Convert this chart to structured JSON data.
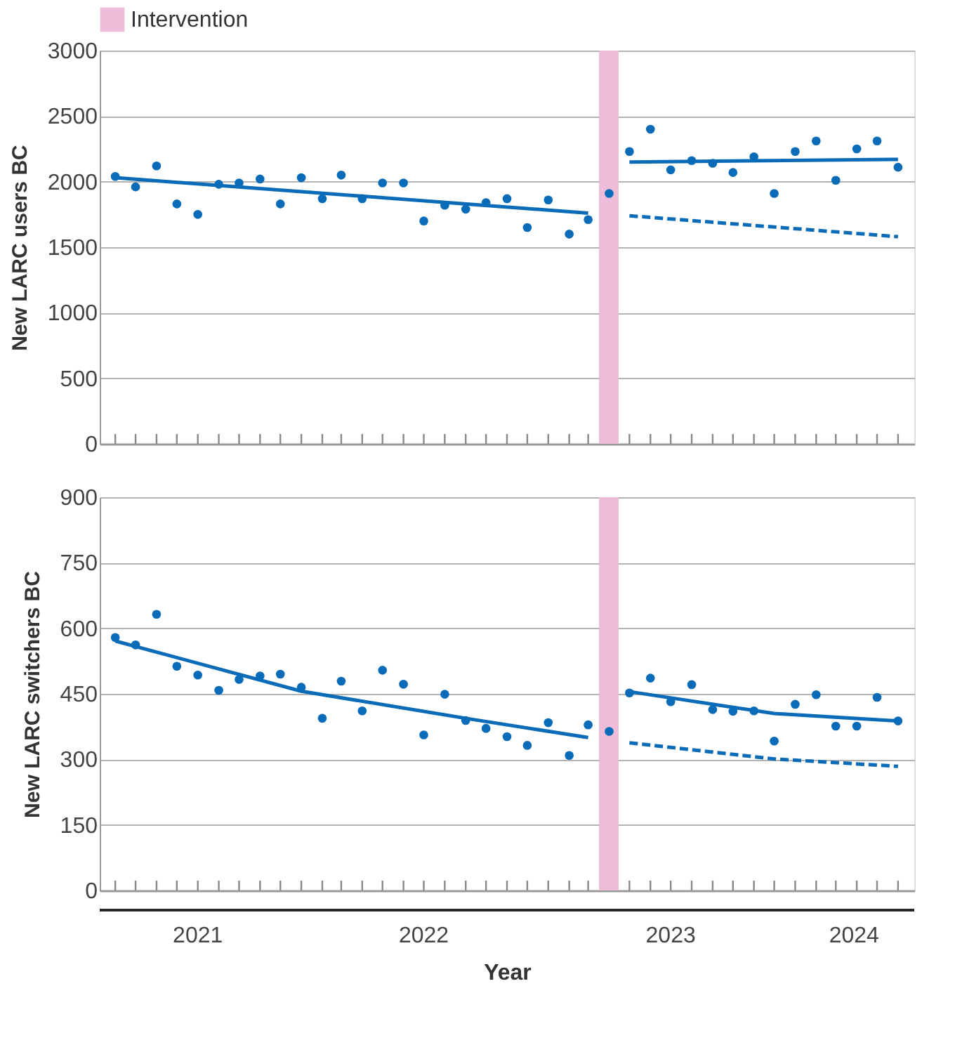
{
  "chart_data": [
    {
      "type": "scatter",
      "ylabel": "New LARC users BC",
      "legend": "top left",
      "grid": "y",
      "tick_labels": "y",
      "x": [
        "2021-04",
        "2021-05",
        "2021-06",
        "2021-07",
        "2021-08",
        "2021-09",
        "2021-10",
        "2021-11",
        "2021-12",
        "2022-01",
        "2022-02",
        "2022-03",
        "2022-04",
        "2022-05",
        "2022-06",
        "2022-07",
        "2022-08",
        "2022-09",
        "2022-10",
        "2022-11",
        "2022-12",
        "2023-01",
        "2023-02",
        "2023-03",
        "2023-04",
        "2023-05",
        "2023-06",
        "2023-07",
        "2023-08",
        "2023-09",
        "2023-10",
        "2023-11",
        "2023-12",
        "2024-01",
        "2024-02",
        "2024-03",
        "2024-04",
        "2024-05",
        "2024-06"
      ],
      "xlim": [
        "2021-03-09",
        "2024-06-25"
      ],
      "xticks": [
        {
          "value": "2021-04",
          "label": null
        },
        {
          "value": "2021-05",
          "label": null
        },
        {
          "value": "2021-06",
          "label": null
        },
        {
          "value": "2021-07",
          "label": null
        },
        {
          "value": "2021-08",
          "label": null
        },
        {
          "value": "2021-09",
          "label": null
        },
        {
          "value": "2021-10",
          "label": null
        },
        {
          "value": "2021-11",
          "label": null
        },
        {
          "value": "2021-12",
          "label": null
        },
        {
          "value": "2022-01",
          "label": null
        },
        {
          "value": "2022-02",
          "label": null
        },
        {
          "value": "2022-03",
          "label": null
        },
        {
          "value": "2022-04",
          "label": null
        },
        {
          "value": "2022-05",
          "label": null
        },
        {
          "value": "2022-06",
          "label": null
        },
        {
          "value": "2022-07",
          "label": null
        },
        {
          "value": "2022-08",
          "label": null
        },
        {
          "value": "2022-09",
          "label": null
        },
        {
          "value": "2022-10",
          "label": null
        },
        {
          "value": "2022-11",
          "label": null
        },
        {
          "value": "2022-12",
          "label": null
        },
        {
          "value": "2023-01",
          "label": null
        },
        {
          "value": "2023-02",
          "label": null
        },
        {
          "value": "2023-03",
          "label": null
        },
        {
          "value": "2023-04",
          "label": null
        },
        {
          "value": "2023-05",
          "label": null
        },
        {
          "value": "2023-06",
          "label": null
        },
        {
          "value": "2023-07",
          "label": null
        },
        {
          "value": "2023-08",
          "label": null
        },
        {
          "value": "2023-09",
          "label": null
        },
        {
          "value": "2023-10",
          "label": null
        },
        {
          "value": "2023-11",
          "label": null
        },
        {
          "value": "2023-12",
          "label": null
        },
        {
          "value": "2024-01",
          "label": null
        },
        {
          "value": "2024-02",
          "label": null
        },
        {
          "value": "2024-03",
          "label": null
        },
        {
          "value": "2024-04",
          "label": null
        },
        {
          "value": "2024-05",
          "label": null
        },
        {
          "value": "2024-06",
          "label": null
        }
      ],
      "ylim": [
        0,
        3000
      ],
      "yticks": [
        0,
        500,
        1000,
        1500,
        2000,
        2500,
        3000
      ],
      "bands": [
        {
          "axis": "x",
          "from": "2023-03-17",
          "to": "2023-04-15",
          "label": "Intervention",
          "color": "#ecbcd8"
        }
      ],
      "series": [
        {
          "color": "#0a6cb8",
          "marker": "circle",
          "values": [
            2040,
            1960,
            2120,
            1830,
            1750,
            1980,
            1990,
            2020,
            1830,
            2030,
            1870,
            2050,
            1870,
            1990,
            1990,
            1700,
            1820,
            1790,
            1840,
            1870,
            1650,
            1860,
            1600,
            1710,
            1910,
            2230,
            2400,
            2090,
            2160,
            2140,
            2070,
            2190,
            1910,
            2230,
            2310,
            2010,
            2250,
            2310,
            2110
          ]
        },
        {
          "type": "line",
          "color": "#0a6cb8",
          "line_style": "solid",
          "x": [
            "2021-04",
            "2023-03"
          ],
          "values": [
            2030,
            1760
          ]
        },
        {
          "type": "line",
          "color": "#0a6cb8",
          "line_style": "solid",
          "x": [
            "2023-05",
            "2024-06"
          ],
          "values": [
            2150,
            2170
          ]
        },
        {
          "type": "line",
          "color": "#0a6cb8",
          "line_style": "dashed",
          "x": [
            "2023-05",
            "2024-06"
          ],
          "values": [
            1740,
            1580
          ]
        }
      ]
    },
    {
      "type": "scatter",
      "ylabel": "New LARC switchers BC",
      "xlabel": "Year",
      "legend": false,
      "grid": "y",
      "x": [
        "2021-04",
        "2021-05",
        "2021-06",
        "2021-07",
        "2021-08",
        "2021-09",
        "2021-10",
        "2021-11",
        "2021-12",
        "2022-01",
        "2022-02",
        "2022-03",
        "2022-04",
        "2022-05",
        "2022-06",
        "2022-07",
        "2022-08",
        "2022-09",
        "2022-10",
        "2022-11",
        "2022-12",
        "2023-01",
        "2023-02",
        "2023-03",
        "2023-04",
        "2023-05",
        "2023-06",
        "2023-07",
        "2023-08",
        "2023-09",
        "2023-10",
        "2023-11",
        "2023-12",
        "2024-01",
        "2024-02",
        "2024-03",
        "2024-04",
        "2024-05",
        "2024-06"
      ],
      "xlim": [
        "2021-03-09",
        "2024-06-25"
      ],
      "xticks": [
        {
          "value": "2021-04",
          "label": null
        },
        {
          "value": "2021-05",
          "label": null
        },
        {
          "value": "2021-06",
          "label": null
        },
        {
          "value": "2021-07",
          "label": null
        },
        {
          "value": "2021-08",
          "label": null
        },
        {
          "value": "2021-09",
          "label": null
        },
        {
          "value": "2021-10",
          "label": null
        },
        {
          "value": "2021-11",
          "label": null
        },
        {
          "value": "2021-12",
          "label": null
        },
        {
          "value": "2022-01",
          "label": null
        },
        {
          "value": "2022-02",
          "label": null
        },
        {
          "value": "2022-03",
          "label": null
        },
        {
          "value": "2022-04",
          "label": null
        },
        {
          "value": "2022-05",
          "label": null
        },
        {
          "value": "2022-06",
          "label": null
        },
        {
          "value": "2022-07",
          "label": null
        },
        {
          "value": "2022-08",
          "label": null
        },
        {
          "value": "2022-09",
          "label": null
        },
        {
          "value": "2022-10",
          "label": null
        },
        {
          "value": "2022-11",
          "label": null
        },
        {
          "value": "2022-12",
          "label": null
        },
        {
          "value": "2023-01",
          "label": null
        },
        {
          "value": "2023-02",
          "label": null
        },
        {
          "value": "2023-03",
          "label": null
        },
        {
          "value": "2023-04",
          "label": null
        },
        {
          "value": "2023-05",
          "label": null
        },
        {
          "value": "2023-06",
          "label": null
        },
        {
          "value": "2023-07",
          "label": null
        },
        {
          "value": "2023-08",
          "label": null
        },
        {
          "value": "2023-09",
          "label": null
        },
        {
          "value": "2023-10",
          "label": null
        },
        {
          "value": "2023-11",
          "label": null
        },
        {
          "value": "2023-12",
          "label": null
        },
        {
          "value": "2024-01",
          "label": null
        },
        {
          "value": "2024-02",
          "label": null
        },
        {
          "value": "2024-03",
          "label": null
        },
        {
          "value": "2024-04",
          "label": null
        },
        {
          "value": "2024-05",
          "label": null
        },
        {
          "value": "2024-06",
          "label": null
        },
        {
          "value": "2021-08-01",
          "label": "2021"
        },
        {
          "value": "2022-07-01",
          "label": "2022"
        },
        {
          "value": "2023-07-01",
          "label": "2023"
        },
        {
          "value": "2024-03-28",
          "label": "2024"
        }
      ],
      "ylim": [
        0,
        900
      ],
      "yticks": [
        0,
        150,
        300,
        450,
        600,
        750,
        900
      ],
      "bands": [
        {
          "axis": "x",
          "from": "2023-03-17",
          "to": "2023-04-15",
          "color": "#ecbcd8"
        }
      ],
      "series": [
        {
          "color": "#0a6cb8",
          "marker": "circle",
          "values": [
            579,
            562,
            632,
            513,
            493,
            458,
            483,
            491,
            495,
            465,
            394,
            479,
            411,
            504,
            472,
            356,
            449,
            389,
            371,
            352,
            332,
            384,
            309,
            379,
            364,
            452,
            486,
            432,
            471,
            414,
            410,
            411,
            342,
            426,
            448,
            376,
            376,
            442,
            388
          ]
        },
        {
          "type": "line",
          "color": "#0a6cb8",
          "line_style": "solid",
          "x": [
            "2021-04",
            "2022-01",
            "2022-09",
            "2023-03"
          ],
          "values": [
            571,
            456,
            394,
            350
          ]
        },
        {
          "type": "line",
          "color": "#0a6cb8",
          "line_style": "solid",
          "x": [
            "2023-05",
            "2023-12",
            "2024-06"
          ],
          "values": [
            455,
            405,
            388
          ]
        },
        {
          "type": "line",
          "color": "#0a6cb8",
          "line_style": "dashed",
          "x": [
            "2023-05",
            "2023-12",
            "2024-06"
          ],
          "values": [
            338,
            301,
            284
          ]
        }
      ]
    }
  ]
}
